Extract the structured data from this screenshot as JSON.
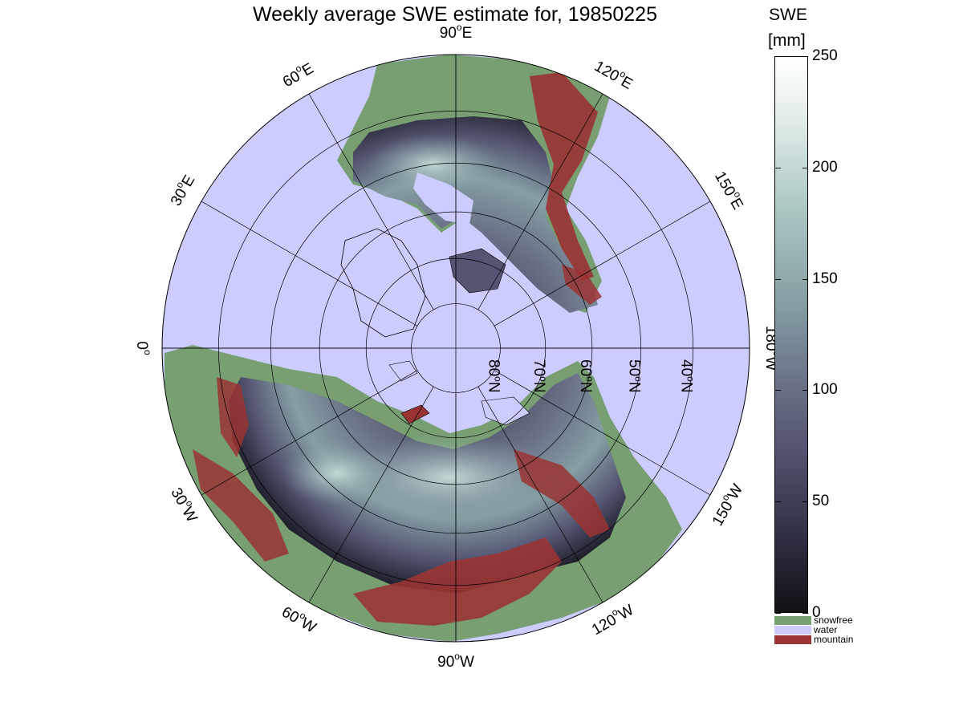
{
  "title": "Weekly average SWE estimate for, 19850225",
  "colorbar": {
    "title": "SWE",
    "unit": "[mm]",
    "ticks": [
      "250",
      "200",
      "150",
      "100",
      "50",
      "0"
    ],
    "tick_values": [
      250,
      200,
      150,
      100,
      50,
      0
    ],
    "range": [
      0,
      250
    ],
    "colors_low_to_high": [
      "#111116",
      "#35354a",
      "#545572",
      "#6c7489",
      "#869fa3",
      "#a9c5c2",
      "#dfeae8",
      "#ffffff"
    ]
  },
  "legend": [
    {
      "label": "snowfree",
      "color": "#779f72"
    },
    {
      "label": "water",
      "color": "#ccccff"
    },
    {
      "label": "mountain",
      "color": "#9a3434"
    }
  ],
  "map": {
    "projection": "north polar stereographic",
    "longitude_labels": [
      {
        "text": "90°W",
        "deg": "90",
        "hemi": "W",
        "lon": -90
      },
      {
        "text": "120°W",
        "deg": "120",
        "hemi": "W",
        "lon": -120
      },
      {
        "text": "150°W",
        "deg": "150",
        "hemi": "W",
        "lon": -150
      },
      {
        "text": "180°W",
        "deg": "180",
        "hemi": "W",
        "lon": 180
      },
      {
        "text": "150°E",
        "deg": "150",
        "hemi": "E",
        "lon": 150
      },
      {
        "text": "120°E",
        "deg": "120",
        "hemi": "E",
        "lon": 120
      },
      {
        "text": "90°E",
        "deg": "90",
        "hemi": "E",
        "lon": 90
      },
      {
        "text": "60°E",
        "deg": "60",
        "hemi": "E",
        "lon": 60
      },
      {
        "text": "30°E",
        "deg": "30",
        "hemi": "E",
        "lon": 30
      },
      {
        "text": "0°",
        "deg": "0",
        "hemi": "",
        "lon": 0
      },
      {
        "text": "30°W",
        "deg": "30",
        "hemi": "W",
        "lon": -30
      },
      {
        "text": "60°W",
        "deg": "60",
        "hemi": "W",
        "lon": -60
      }
    ],
    "latitude_labels": [
      {
        "text": "80°N",
        "deg": "80",
        "hemi": "N",
        "lat": 80
      },
      {
        "text": "70°N",
        "deg": "70",
        "hemi": "N",
        "lat": 70
      },
      {
        "text": "60°N",
        "deg": "60",
        "hemi": "N",
        "lat": 60
      },
      {
        "text": "50°N",
        "deg": "50",
        "hemi": "N",
        "lat": 50
      },
      {
        "text": "40°N",
        "deg": "40",
        "hemi": "N",
        "lat": 40
      }
    ],
    "meridian_spacing_deg": 30,
    "parallels_deg": [
      80,
      70,
      60,
      50,
      40
    ],
    "outer_boundary_lat": 30
  }
}
